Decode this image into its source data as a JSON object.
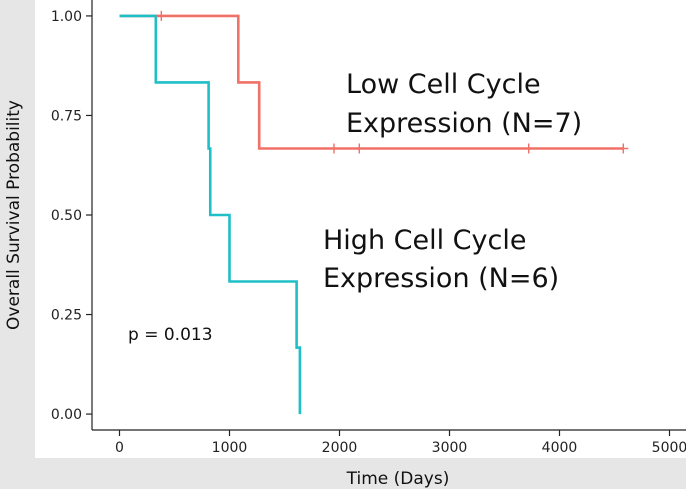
{
  "chart_data": {
    "type": "line",
    "title": "",
    "xlabel": "Time (Days)",
    "ylabel": "Overall Survival Probability",
    "xlim": [
      -250,
      5150
    ],
    "ylim": [
      -0.04,
      1.04
    ],
    "x_ticks": [
      0,
      1000,
      2000,
      3000,
      4000,
      5000
    ],
    "y_ticks": [
      0.0,
      0.25,
      0.5,
      0.75,
      1.0
    ],
    "x_tick_labels": [
      "0",
      "1000",
      "2000",
      "3000",
      "4000",
      "5000"
    ],
    "y_tick_labels": [
      "0.00",
      "0.25",
      "0.50",
      "0.75",
      "1.00"
    ],
    "grid": false,
    "series": [
      {
        "name": "Low Cell Cycle Expression (N=7)",
        "color": "#f07167",
        "steps": [
          [
            0,
            1.0
          ],
          [
            1080,
            0.833
          ],
          [
            1270,
            0.667
          ],
          [
            4580,
            0.667
          ]
        ],
        "censored": [
          [
            380,
            1.0
          ],
          [
            1950,
            0.667
          ],
          [
            2180,
            0.667
          ],
          [
            3720,
            0.667
          ],
          [
            4580,
            0.667
          ]
        ]
      },
      {
        "name": "High Cell Cycle Expression (N=6)",
        "color": "#1fbfc7",
        "steps": [
          [
            0,
            1.0
          ],
          [
            330,
            0.833
          ],
          [
            810,
            0.667
          ],
          [
            825,
            0.5
          ],
          [
            1000,
            0.333
          ],
          [
            1610,
            0.167
          ],
          [
            1640,
            0.0
          ]
        ],
        "censored": []
      }
    ],
    "annotations": [
      {
        "lines": [
          "Low Cell Cycle",
          "Expression (N=7)"
        ]
      },
      {
        "lines": [
          "High Cell Cycle",
          "Expression (N=6)"
        ]
      },
      {
        "lines": [
          "p = 0.013"
        ]
      }
    ]
  }
}
